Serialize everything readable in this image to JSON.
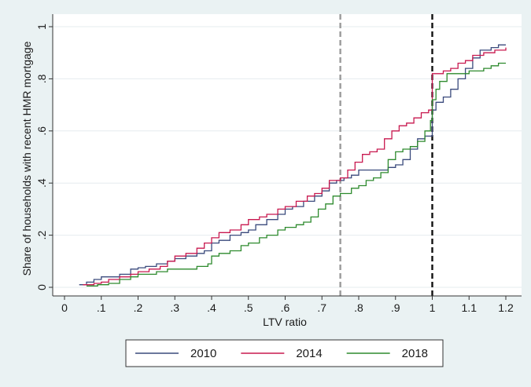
{
  "chart_data": {
    "type": "line",
    "title": "",
    "xlabel": "LTV ratio",
    "ylabel": "Share of households with recent HMR mortgage",
    "xlim": [
      0,
      1.2
    ],
    "ylim": [
      0,
      1
    ],
    "x_ticks": [
      "0",
      ".1",
      ".2",
      ".3",
      ".4",
      ".5",
      ".6",
      ".7",
      ".8",
      ".9",
      "1",
      "1.1",
      "1.2"
    ],
    "y_ticks": [
      "0",
      ".2",
      ".4",
      ".6",
      ".8",
      "1"
    ],
    "grid": true,
    "legend_position": "bottom",
    "reference_lines": [
      {
        "x": 0.75,
        "color": "#9a9a9a",
        "style": "dashed"
      },
      {
        "x": 1.0,
        "color": "#111111",
        "style": "dashed"
      }
    ],
    "series": [
      {
        "name": "2010",
        "color": "#3a4a7c",
        "points": [
          [
            0.04,
            0.01
          ],
          [
            0.06,
            0.02
          ],
          [
            0.08,
            0.03
          ],
          [
            0.1,
            0.04
          ],
          [
            0.12,
            0.04
          ],
          [
            0.15,
            0.05
          ],
          [
            0.18,
            0.07
          ],
          [
            0.2,
            0.075
          ],
          [
            0.22,
            0.08
          ],
          [
            0.25,
            0.09
          ],
          [
            0.28,
            0.1
          ],
          [
            0.3,
            0.11
          ],
          [
            0.33,
            0.12
          ],
          [
            0.36,
            0.13
          ],
          [
            0.38,
            0.14
          ],
          [
            0.4,
            0.17
          ],
          [
            0.42,
            0.18
          ],
          [
            0.45,
            0.2
          ],
          [
            0.48,
            0.21
          ],
          [
            0.5,
            0.22
          ],
          [
            0.52,
            0.24
          ],
          [
            0.55,
            0.26
          ],
          [
            0.58,
            0.28
          ],
          [
            0.6,
            0.3
          ],
          [
            0.62,
            0.31
          ],
          [
            0.65,
            0.33
          ],
          [
            0.68,
            0.35
          ],
          [
            0.7,
            0.37
          ],
          [
            0.72,
            0.4
          ],
          [
            0.74,
            0.41
          ],
          [
            0.76,
            0.42
          ],
          [
            0.78,
            0.43
          ],
          [
            0.8,
            0.45
          ],
          [
            0.83,
            0.45
          ],
          [
            0.86,
            0.45
          ],
          [
            0.88,
            0.46
          ],
          [
            0.9,
            0.47
          ],
          [
            0.92,
            0.49
          ],
          [
            0.94,
            0.53
          ],
          [
            0.96,
            0.57
          ],
          [
            0.98,
            0.58
          ],
          [
            0.995,
            0.58
          ],
          [
            1.0,
            0.68
          ],
          [
            1.01,
            0.71
          ],
          [
            1.03,
            0.73
          ],
          [
            1.05,
            0.76
          ],
          [
            1.07,
            0.8
          ],
          [
            1.09,
            0.84
          ],
          [
            1.11,
            0.88
          ],
          [
            1.13,
            0.91
          ],
          [
            1.16,
            0.92
          ],
          [
            1.18,
            0.93
          ],
          [
            1.2,
            0.93
          ]
        ]
      },
      {
        "name": "2014",
        "color": "#c8184f",
        "points": [
          [
            0.05,
            0.01
          ],
          [
            0.08,
            0.015
          ],
          [
            0.1,
            0.02
          ],
          [
            0.12,
            0.03
          ],
          [
            0.15,
            0.04
          ],
          [
            0.18,
            0.05
          ],
          [
            0.2,
            0.06
          ],
          [
            0.23,
            0.07
          ],
          [
            0.26,
            0.08
          ],
          [
            0.28,
            0.1
          ],
          [
            0.3,
            0.12
          ],
          [
            0.33,
            0.13
          ],
          [
            0.36,
            0.15
          ],
          [
            0.38,
            0.17
          ],
          [
            0.4,
            0.19
          ],
          [
            0.42,
            0.21
          ],
          [
            0.45,
            0.22
          ],
          [
            0.48,
            0.24
          ],
          [
            0.5,
            0.26
          ],
          [
            0.53,
            0.27
          ],
          [
            0.55,
            0.28
          ],
          [
            0.58,
            0.3
          ],
          [
            0.6,
            0.31
          ],
          [
            0.63,
            0.33
          ],
          [
            0.66,
            0.35
          ],
          [
            0.68,
            0.36
          ],
          [
            0.7,
            0.38
          ],
          [
            0.72,
            0.41
          ],
          [
            0.75,
            0.42
          ],
          [
            0.77,
            0.45
          ],
          [
            0.79,
            0.48
          ],
          [
            0.81,
            0.51
          ],
          [
            0.83,
            0.52
          ],
          [
            0.85,
            0.53
          ],
          [
            0.87,
            0.57
          ],
          [
            0.89,
            0.6
          ],
          [
            0.91,
            0.62
          ],
          [
            0.93,
            0.63
          ],
          [
            0.95,
            0.65
          ],
          [
            0.97,
            0.67
          ],
          [
            0.99,
            0.68
          ],
          [
            0.995,
            0.68
          ],
          [
            1.0,
            0.82
          ],
          [
            1.03,
            0.83
          ],
          [
            1.05,
            0.84
          ],
          [
            1.07,
            0.86
          ],
          [
            1.09,
            0.87
          ],
          [
            1.11,
            0.89
          ],
          [
            1.14,
            0.9
          ],
          [
            1.17,
            0.91
          ],
          [
            1.2,
            0.92
          ]
        ]
      },
      {
        "name": "2018",
        "color": "#2d8a2d",
        "points": [
          [
            0.06,
            0.005
          ],
          [
            0.09,
            0.01
          ],
          [
            0.12,
            0.015
          ],
          [
            0.15,
            0.03
          ],
          [
            0.18,
            0.04
          ],
          [
            0.2,
            0.05
          ],
          [
            0.22,
            0.05
          ],
          [
            0.25,
            0.06
          ],
          [
            0.28,
            0.07
          ],
          [
            0.32,
            0.07
          ],
          [
            0.36,
            0.08
          ],
          [
            0.39,
            0.09
          ],
          [
            0.4,
            0.12
          ],
          [
            0.42,
            0.13
          ],
          [
            0.45,
            0.14
          ],
          [
            0.48,
            0.16
          ],
          [
            0.5,
            0.17
          ],
          [
            0.53,
            0.19
          ],
          [
            0.55,
            0.2
          ],
          [
            0.58,
            0.22
          ],
          [
            0.6,
            0.23
          ],
          [
            0.63,
            0.24
          ],
          [
            0.65,
            0.25
          ],
          [
            0.67,
            0.27
          ],
          [
            0.69,
            0.3
          ],
          [
            0.71,
            0.32
          ],
          [
            0.73,
            0.35
          ],
          [
            0.75,
            0.36
          ],
          [
            0.78,
            0.38
          ],
          [
            0.8,
            0.39
          ],
          [
            0.82,
            0.41
          ],
          [
            0.84,
            0.42
          ],
          [
            0.86,
            0.44
          ],
          [
            0.88,
            0.49
          ],
          [
            0.9,
            0.52
          ],
          [
            0.92,
            0.53
          ],
          [
            0.94,
            0.54
          ],
          [
            0.96,
            0.56
          ],
          [
            0.98,
            0.6
          ],
          [
            0.995,
            0.64
          ],
          [
            1.0,
            0.72
          ],
          [
            1.01,
            0.76
          ],
          [
            1.02,
            0.79
          ],
          [
            1.04,
            0.82
          ],
          [
            1.06,
            0.82
          ],
          [
            1.08,
            0.82
          ],
          [
            1.1,
            0.83
          ],
          [
            1.12,
            0.83
          ],
          [
            1.14,
            0.84
          ],
          [
            1.16,
            0.85
          ],
          [
            1.18,
            0.86
          ],
          [
            1.2,
            0.86
          ]
        ]
      }
    ]
  }
}
